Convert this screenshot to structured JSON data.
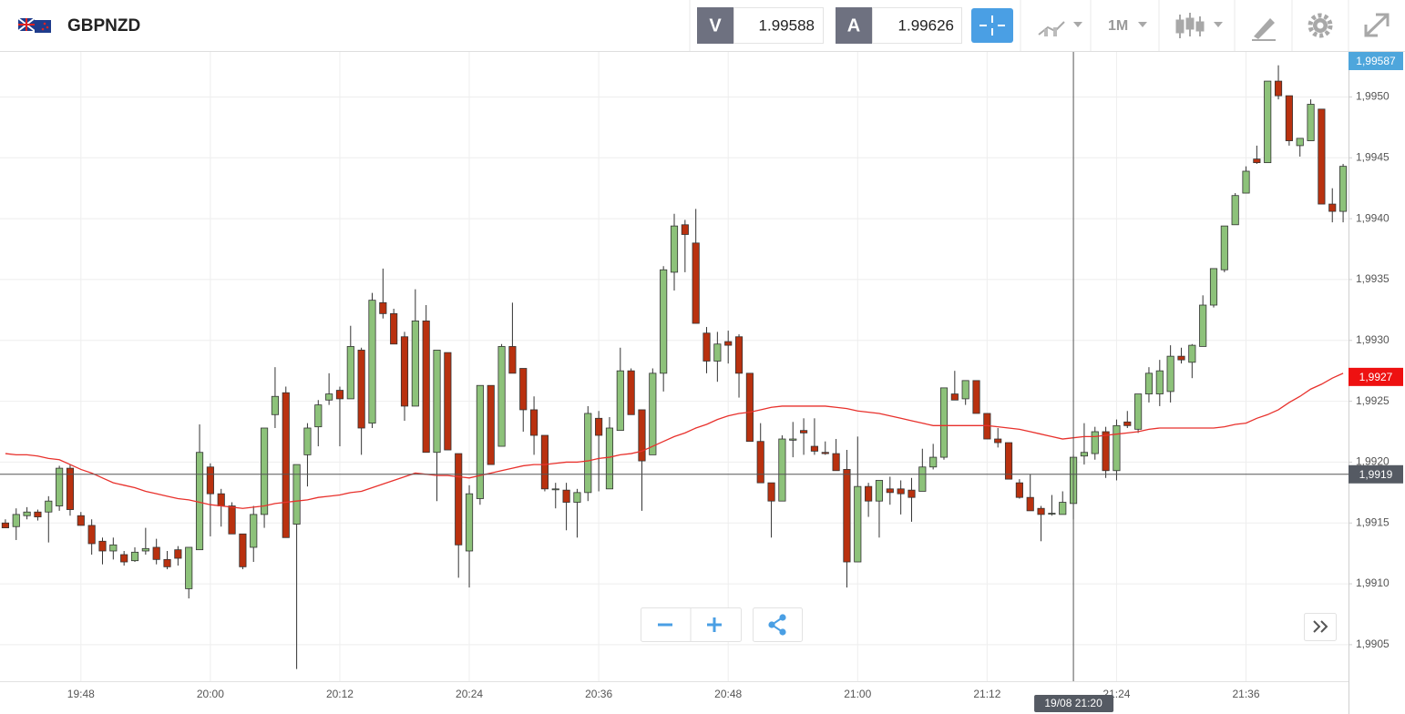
{
  "header": {
    "symbol": "GBPNZD",
    "bid_label": "V",
    "bid": "1.99588",
    "ask_label": "A",
    "ask": "1.99626",
    "timeframe": "1M"
  },
  "chart_data": {
    "type": "candlestick",
    "categories": [
      null,
      null,
      null,
      null,
      null,
      null,
      null,
      "19:48",
      null,
      null,
      null,
      null,
      null,
      null,
      null,
      null,
      null,
      null,
      null,
      "20:00",
      null,
      null,
      null,
      null,
      null,
      null,
      null,
      null,
      null,
      null,
      null,
      "20:12",
      null,
      null,
      null,
      null,
      null,
      null,
      null,
      null,
      null,
      null,
      null,
      "20:24",
      null,
      null,
      null,
      null,
      null,
      null,
      null,
      null,
      null,
      null,
      null,
      "20:36",
      null,
      null,
      null,
      null,
      null,
      null,
      null,
      null,
      null,
      null,
      null,
      "20:48",
      null,
      null,
      null,
      null,
      null,
      null,
      null,
      null,
      null,
      null,
      null,
      "21:00",
      null,
      null,
      null,
      null,
      null,
      null,
      null,
      null,
      null,
      null,
      null,
      "21:12",
      null,
      null,
      null,
      null,
      null,
      null,
      null,
      null,
      null,
      null,
      null,
      "21:24",
      null,
      null,
      null,
      null,
      null,
      null,
      null,
      null,
      null,
      null,
      null,
      "21:36",
      null,
      null,
      null,
      null,
      null,
      null,
      null,
      null,
      null
    ],
    "open": [
      1.9915,
      1.99147,
      1.99156,
      1.99159,
      1.99159,
      1.99164,
      1.99195,
      1.99156,
      1.99148,
      1.99135,
      1.99127,
      1.99124,
      1.99119,
      1.99127,
      1.9913,
      1.9912,
      1.99128,
      1.99096,
      1.99128,
      1.99196,
      1.99174,
      1.99164,
      1.99141,
      1.9913,
      1.99157,
      1.99239,
      1.99257,
      1.99149,
      1.99206,
      1.99229,
      1.99251,
      1.99259,
      1.99252,
      1.99292,
      1.99232,
      1.99331,
      1.99322,
      1.99303,
      1.99246,
      1.99316,
      1.99208,
      1.9929,
      1.99207,
      1.99127,
      1.9917,
      1.99263,
      1.99213,
      1.99295,
      1.99277,
      1.99243,
      1.99222,
      1.99178,
      1.99177,
      1.99167,
      1.99175,
      1.99236,
      1.99178,
      1.99226,
      1.99275,
      1.99243,
      1.99206,
      1.99273,
      1.99356,
      1.99395,
      1.9938,
      1.99306,
      1.99283,
      1.99299,
      1.99303,
      1.99273,
      1.99217,
      1.99183,
      1.99168,
      1.99218,
      1.99226,
      1.99213,
      1.99208,
      1.99207,
      1.99194,
      1.99118,
      1.9918,
      1.99168,
      1.99178,
      1.99178,
      1.99177,
      1.99176,
      1.99196,
      1.99204,
      1.99256,
      1.99252,
      1.99267,
      1.9924,
      1.99219,
      1.99216,
      1.99183,
      1.99171,
      1.99162,
      1.99158,
      1.99157,
      1.99166,
      1.99205,
      1.99207,
      1.99225,
      1.99193,
      1.99233,
      1.99227,
      1.99256,
      1.99256,
      1.99258,
      1.99287,
      1.99282,
      1.99295,
      1.99329,
      1.99358,
      1.99395,
      1.99421,
      1.99449,
      1.99446,
      1.99513,
      1.99501,
      1.9946,
      1.99464,
      1.9949,
      1.99412,
      1.99406
    ],
    "high": [
      1.99153,
      1.99162,
      1.99163,
      1.99161,
      1.99172,
      1.99197,
      1.99198,
      1.99159,
      1.99153,
      1.99138,
      1.99138,
      1.99127,
      1.9913,
      1.99146,
      1.99137,
      1.99127,
      1.99131,
      1.9913,
      1.99231,
      1.99199,
      1.99178,
      1.99167,
      1.99141,
      1.99164,
      1.99228,
      1.99278,
      1.99262,
      1.99198,
      1.99232,
      1.99251,
      1.99273,
      1.99262,
      1.99312,
      1.99294,
      1.99339,
      1.99359,
      1.99326,
      1.99307,
      1.99342,
      1.99329,
      1.99292,
      1.9929,
      1.99207,
      1.99181,
      1.99263,
      1.99263,
      1.99297,
      1.99331,
      1.99277,
      1.99254,
      1.99222,
      1.99183,
      1.99183,
      1.99178,
      1.99246,
      1.99242,
      1.99237,
      1.99294,
      1.99277,
      1.99243,
      1.99277,
      1.99361,
      1.99404,
      1.99399,
      1.99408,
      1.99311,
      1.99307,
      1.99308,
      1.99305,
      1.99273,
      1.99232,
      1.99183,
      1.99222,
      1.99233,
      1.99236,
      1.99236,
      1.99217,
      1.99219,
      1.9921,
      1.99221,
      1.99183,
      1.99185,
      1.99188,
      1.99185,
      1.99187,
      1.99211,
      1.99215,
      1.99261,
      1.99275,
      1.99267,
      1.99267,
      1.9924,
      1.99228,
      1.99216,
      1.99186,
      1.9919,
      1.99164,
      1.99173,
      1.99176,
      1.99206,
      1.99232,
      1.99229,
      1.99229,
      1.99235,
      1.99242,
      1.99256,
      1.99278,
      1.99284,
      1.99296,
      1.99294,
      1.99297,
      1.99337,
      1.99359,
      1.99394,
      1.99421,
      1.99443,
      1.9946,
      1.99513,
      1.99526,
      1.99501,
      1.99466,
      1.99498,
      1.9949,
      1.99425,
      1.99445
    ],
    "low": [
      1.99146,
      1.99136,
      1.99153,
      1.99152,
      1.99134,
      1.9916,
      1.99156,
      1.99148,
      1.99124,
      1.99116,
      1.9912,
      1.99115,
      1.99118,
      1.99124,
      1.99116,
      1.99112,
      1.99115,
      1.99088,
      1.99128,
      1.99139,
      1.99147,
      1.99141,
      1.99112,
      1.99118,
      1.99146,
      1.99228,
      1.99138,
      1.9903,
      1.9918,
      1.99213,
      1.99247,
      1.99213,
      1.99252,
      1.99206,
      1.99228,
      1.99318,
      1.99297,
      1.99234,
      1.99246,
      1.99208,
      1.99168,
      1.9921,
      1.99105,
      1.99097,
      1.99165,
      1.99198,
      1.99213,
      1.99273,
      1.99225,
      1.99206,
      1.99176,
      1.99162,
      1.99144,
      1.99138,
      1.99168,
      1.99176,
      1.99178,
      1.99226,
      1.99239,
      1.9916,
      1.99206,
      1.99258,
      1.99341,
      1.99356,
      1.99314,
      1.99273,
      1.99266,
      1.99281,
      1.99253,
      1.99217,
      1.99183,
      1.99138,
      1.99168,
      1.99204,
      1.99206,
      1.99206,
      1.99206,
      1.99193,
      1.99097,
      1.99118,
      1.99155,
      1.99138,
      1.99165,
      1.99157,
      1.99151,
      1.99176,
      1.99194,
      1.99202,
      1.99251,
      1.99247,
      1.9924,
      1.99219,
      1.99212,
      1.99186,
      1.9917,
      1.9916,
      1.99135,
      1.99156,
      1.99157,
      1.99153,
      1.99198,
      1.99202,
      1.99187,
      1.99185,
      1.99228,
      1.99224,
      1.99249,
      1.99246,
      1.99249,
      1.99281,
      1.99269,
      1.99295,
      1.99327,
      1.99356,
      1.99395,
      1.99421,
      1.99445,
      1.99446,
      1.99498,
      1.9946,
      1.99451,
      1.99464,
      1.99412,
      1.99397,
      1.99397
    ],
    "close": [
      1.99146,
      1.99157,
      1.99159,
      1.99155,
      1.99168,
      1.99195,
      1.99161,
      1.99148,
      1.99133,
      1.99127,
      1.99132,
      1.99118,
      1.99126,
      1.99129,
      1.9912,
      1.99114,
      1.99121,
      1.9913,
      1.99208,
      1.99174,
      1.99164,
      1.99141,
      1.99114,
      1.99157,
      1.99228,
      1.99254,
      1.99138,
      1.99198,
      1.99228,
      1.99247,
      1.99256,
      1.99252,
      1.99295,
      1.99228,
      1.99333,
      1.99322,
      1.99297,
      1.99246,
      1.99316,
      1.99208,
      1.99292,
      1.9921,
      1.99132,
      1.99174,
      1.99263,
      1.99198,
      1.99295,
      1.99273,
      1.99243,
      1.99222,
      1.99178,
      1.99178,
      1.99167,
      1.99175,
      1.9924,
      1.99222,
      1.99228,
      1.99275,
      1.99239,
      1.99201,
      1.99273,
      1.99358,
      1.99394,
      1.99387,
      1.99314,
      1.99283,
      1.99297,
      1.99296,
      1.99273,
      1.99217,
      1.99183,
      1.99168,
      1.99219,
      1.99219,
      1.99224,
      1.99209,
      1.99207,
      1.99193,
      1.99118,
      1.9918,
      1.99168,
      1.99185,
      1.99175,
      1.99174,
      1.99171,
      1.99196,
      1.99204,
      1.99261,
      1.99251,
      1.99267,
      1.9924,
      1.99219,
      1.99216,
      1.99186,
      1.99171,
      1.9916,
      1.99157,
      1.99158,
      1.99167,
      1.99204,
      1.99208,
      1.99225,
      1.99193,
      1.9923,
      1.9923,
      1.99256,
      1.99273,
      1.99275,
      1.99287,
      1.99284,
      1.99296,
      1.99329,
      1.99359,
      1.99394,
      1.99419,
      1.99439,
      1.99446,
      1.99513,
      1.99501,
      1.99464,
      1.99466,
      1.99494,
      1.99412,
      1.99406,
      1.99443
    ],
    "up_color": "#8dc27a",
    "down_color": "#b9310f",
    "ma": {
      "color": "#e8312c",
      "values": [
        1.99207,
        1.99206,
        1.99206,
        1.99205,
        1.99203,
        1.99202,
        1.99198,
        1.99194,
        1.99191,
        1.99187,
        1.99183,
        1.99181,
        1.99179,
        1.99176,
        1.99174,
        1.99172,
        1.9917,
        1.99169,
        1.99167,
        1.99165,
        1.99164,
        1.99163,
        1.99162,
        1.99163,
        1.99164,
        1.99166,
        1.99167,
        1.99168,
        1.99169,
        1.99171,
        1.99172,
        1.99173,
        1.99175,
        1.99176,
        1.99179,
        1.99182,
        1.99185,
        1.99188,
        1.99191,
        1.9919,
        1.99189,
        1.99189,
        1.99188,
        1.99187,
        1.99189,
        1.99191,
        1.99193,
        1.99195,
        1.99197,
        1.99198,
        1.99198,
        1.99199,
        1.992,
        1.992,
        1.99201,
        1.99203,
        1.99204,
        1.99206,
        1.99207,
        1.99209,
        1.99213,
        1.99217,
        1.99221,
        1.99224,
        1.99228,
        1.99231,
        1.99235,
        1.99238,
        1.9924,
        1.99241,
        1.99243,
        1.99245,
        1.99246,
        1.99246,
        1.99246,
        1.99246,
        1.99246,
        1.99245,
        1.99244,
        1.99242,
        1.99241,
        1.9924,
        1.99238,
        1.99236,
        1.99234,
        1.99232,
        1.9923,
        1.9923,
        1.9923,
        1.9923,
        1.9923,
        1.9923,
        1.99229,
        1.99228,
        1.99227,
        1.99225,
        1.99223,
        1.99221,
        1.99219,
        1.9922,
        1.99221,
        1.99221,
        1.99222,
        1.99223,
        1.99224,
        1.99225,
        1.99227,
        1.99228,
        1.99228,
        1.99228,
        1.99228,
        1.99228,
        1.99228,
        1.99229,
        1.99231,
        1.99232,
        1.99236,
        1.99239,
        1.99243,
        1.99249,
        1.99254,
        1.9926,
        1.99264,
        1.99269,
        1.99273
      ],
      "last": {
        "value": 1.9927,
        "label": "1,9927"
      }
    },
    "last_price": {
      "value": 1.99587,
      "label": "1,99587"
    },
    "crosshair": {
      "price": {
        "value": 1.9919,
        "label": "1,9919"
      },
      "time": "19/08 21:20"
    },
    "ylim": [
      1.9902,
      1.99537
    ],
    "yticks": [
      {
        "value": 1.9905,
        "label": "1,9905"
      },
      {
        "value": 1.991,
        "label": "1,9910"
      },
      {
        "value": 1.9915,
        "label": "1,9915"
      },
      {
        "value": 1.992,
        "label": "1,9920"
      },
      {
        "value": 1.9925,
        "label": "1,9925"
      },
      {
        "value": 1.993,
        "label": "1,9930"
      },
      {
        "value": 1.9935,
        "label": "1,9935"
      },
      {
        "value": 1.994,
        "label": "1,9940"
      },
      {
        "value": 1.9945,
        "label": "1,9945"
      },
      {
        "value": 1.995,
        "label": "1,9950"
      }
    ],
    "grid": true
  }
}
